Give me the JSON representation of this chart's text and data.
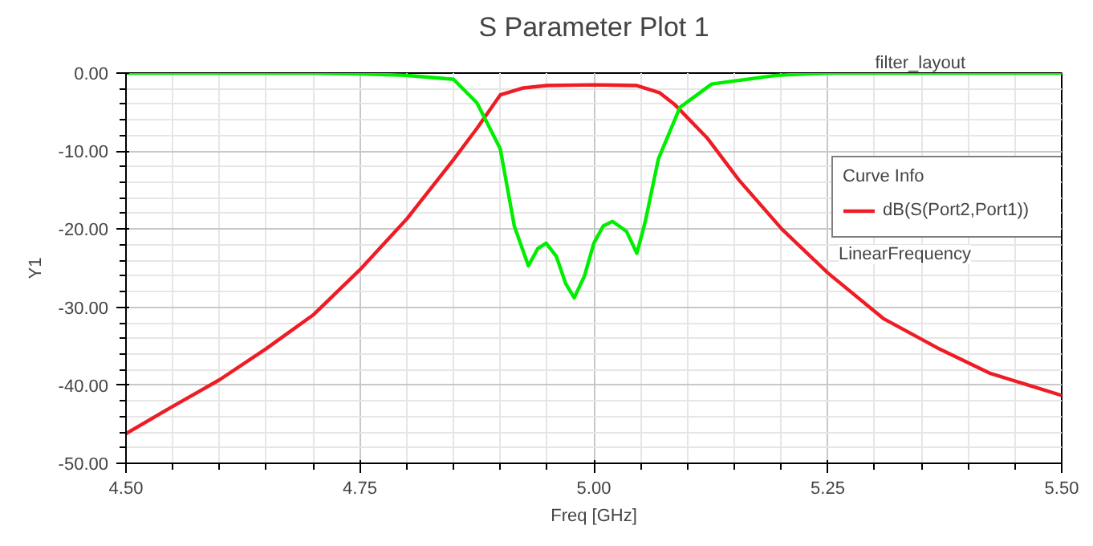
{
  "chart_data": {
    "type": "line",
    "title": "S Parameter Plot 1",
    "xlabel": "Freq [GHz]",
    "ylabel": "Y1",
    "legend_title": "Curve Info",
    "annotations": [
      "filter_layout",
      "LinearFrequency"
    ],
    "xlim": [
      4.5,
      5.5
    ],
    "ylim": [
      -50,
      0
    ],
    "xticks": [
      {
        "value": 4.5,
        "label": "4.50"
      },
      {
        "value": 4.75,
        "label": "4.75"
      },
      {
        "value": 5.0,
        "label": "5.00"
      },
      {
        "value": 5.25,
        "label": "5.25"
      },
      {
        "value": 5.5,
        "label": "5.50"
      }
    ],
    "yticks": [
      {
        "value": -50,
        "label": "-50.00"
      },
      {
        "value": -40,
        "label": "-40.00"
      },
      {
        "value": -30,
        "label": "-30.00"
      },
      {
        "value": -20,
        "label": "-20.00"
      },
      {
        "value": -10,
        "label": "-10.00"
      },
      {
        "value": 0,
        "label": "0.00"
      }
    ],
    "grid": true,
    "legend": "right",
    "marker": "none",
    "line_style": "solid",
    "series": [
      {
        "name": "dB(S(Port2,Port1))",
        "color": "#ee1c25",
        "x": [
          4.5,
          4.55,
          4.6,
          4.65,
          4.7,
          4.75,
          4.8,
          4.85,
          4.875,
          4.9,
          4.925,
          4.95,
          5.0,
          5.046,
          5.07,
          5.087,
          5.121,
          5.155,
          5.201,
          5.25,
          5.31,
          5.367,
          5.424,
          5.5
        ],
        "values": [
          -46.2,
          -42.7,
          -39.3,
          -35.3,
          -31.0,
          -25.2,
          -18.7,
          -11.1,
          -7.1,
          -2.8,
          -1.9,
          -1.6,
          -1.5,
          -1.6,
          -2.5,
          -4.1,
          -8.3,
          -13.7,
          -20.0,
          -25.6,
          -31.5,
          -35.2,
          -38.5,
          -41.3
        ]
      },
      {
        "color": "#00ee00",
        "x": [
          4.5,
          4.6,
          4.7,
          4.75,
          4.8,
          4.85,
          4.875,
          4.9,
          4.915,
          4.93,
          4.94,
          4.949,
          4.96,
          4.97,
          4.979,
          4.99,
          5.0,
          5.01,
          5.02,
          5.035,
          5.046,
          5.055,
          5.069,
          5.092,
          5.126,
          5.195,
          5.25,
          5.5
        ],
        "values": [
          0,
          0,
          0,
          -0.1,
          -0.3,
          -0.8,
          -3.8,
          -9.7,
          -19.6,
          -24.7,
          -22.5,
          -21.8,
          -23.5,
          -27.0,
          -28.8,
          -26.0,
          -21.8,
          -19.6,
          -19.0,
          -20.3,
          -23.1,
          -19.0,
          -11.0,
          -4.4,
          -1.4,
          -0.3,
          0,
          0
        ]
      }
    ]
  }
}
